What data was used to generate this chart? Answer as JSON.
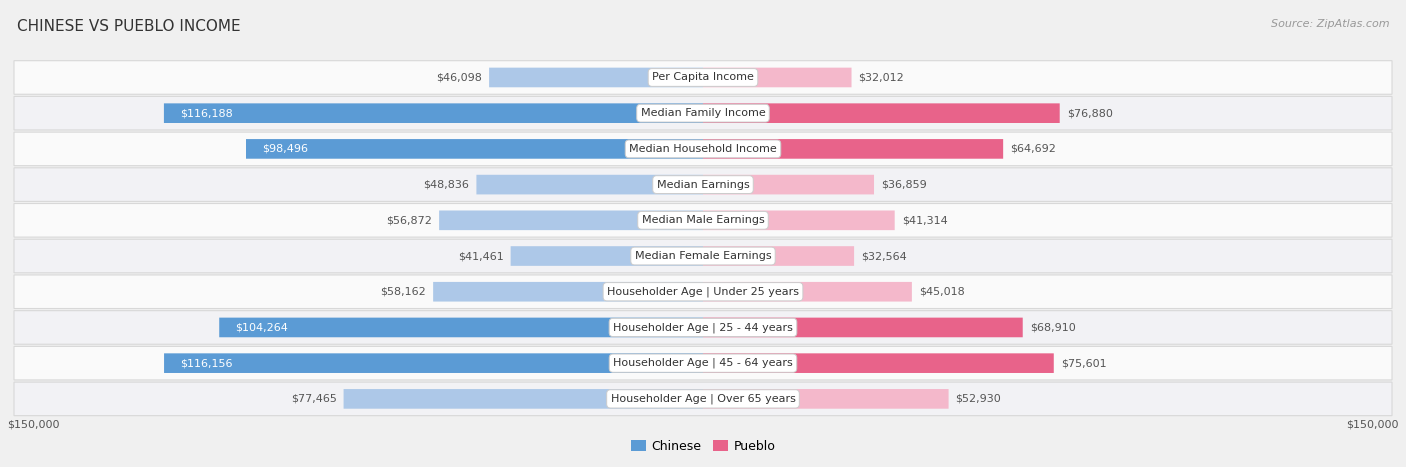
{
  "title": "CHINESE VS PUEBLO INCOME",
  "source": "Source: ZipAtlas.com",
  "categories": [
    "Per Capita Income",
    "Median Family Income",
    "Median Household Income",
    "Median Earnings",
    "Median Male Earnings",
    "Median Female Earnings",
    "Householder Age | Under 25 years",
    "Householder Age | 25 - 44 years",
    "Householder Age | 45 - 64 years",
    "Householder Age | Over 65 years"
  ],
  "chinese_values": [
    46098,
    116188,
    98496,
    48836,
    56872,
    41461,
    58162,
    104264,
    116156,
    77465
  ],
  "pueblo_values": [
    32012,
    76880,
    64692,
    36859,
    41314,
    32564,
    45018,
    68910,
    75601,
    52930
  ],
  "chinese_labels": [
    "$46,098",
    "$116,188",
    "$98,496",
    "$48,836",
    "$56,872",
    "$41,461",
    "$58,162",
    "$104,264",
    "$116,156",
    "$77,465"
  ],
  "pueblo_labels": [
    "$32,012",
    "$76,880",
    "$64,692",
    "$36,859",
    "$41,314",
    "$32,564",
    "$45,018",
    "$68,910",
    "$75,601",
    "$52,930"
  ],
  "max_value": 150000,
  "chinese_colors": [
    "#adc8e8",
    "#5b9bd5",
    "#5b9bd5",
    "#adc8e8",
    "#adc8e8",
    "#adc8e8",
    "#adc8e8",
    "#5b9bd5",
    "#5b9bd5",
    "#adc8e8"
  ],
  "pueblo_colors": [
    "#f4b8cb",
    "#e8638a",
    "#e8638a",
    "#f4b8cb",
    "#f4b8cb",
    "#f4b8cb",
    "#f4b8cb",
    "#e8638a",
    "#e8638a",
    "#f4b8cb"
  ],
  "label_color_dark": "#ffffff",
  "label_color_light": "#555555",
  "background_color": "#f0f0f0",
  "row_bg_odd": "#f2f2f5",
  "row_bg_even": "#fafafa",
  "category_box_color": "#ffffff",
  "category_box_edge": "#cccccc",
  "x_axis_label": "$150,000",
  "legend_chinese": "Chinese",
  "legend_pueblo": "Pueblo",
  "legend_chinese_color": "#5b9bd5",
  "legend_pueblo_color": "#e8638a",
  "title_fontsize": 11,
  "source_fontsize": 8,
  "bar_label_fontsize": 8,
  "category_fontsize": 8,
  "axis_label_fontsize": 8
}
